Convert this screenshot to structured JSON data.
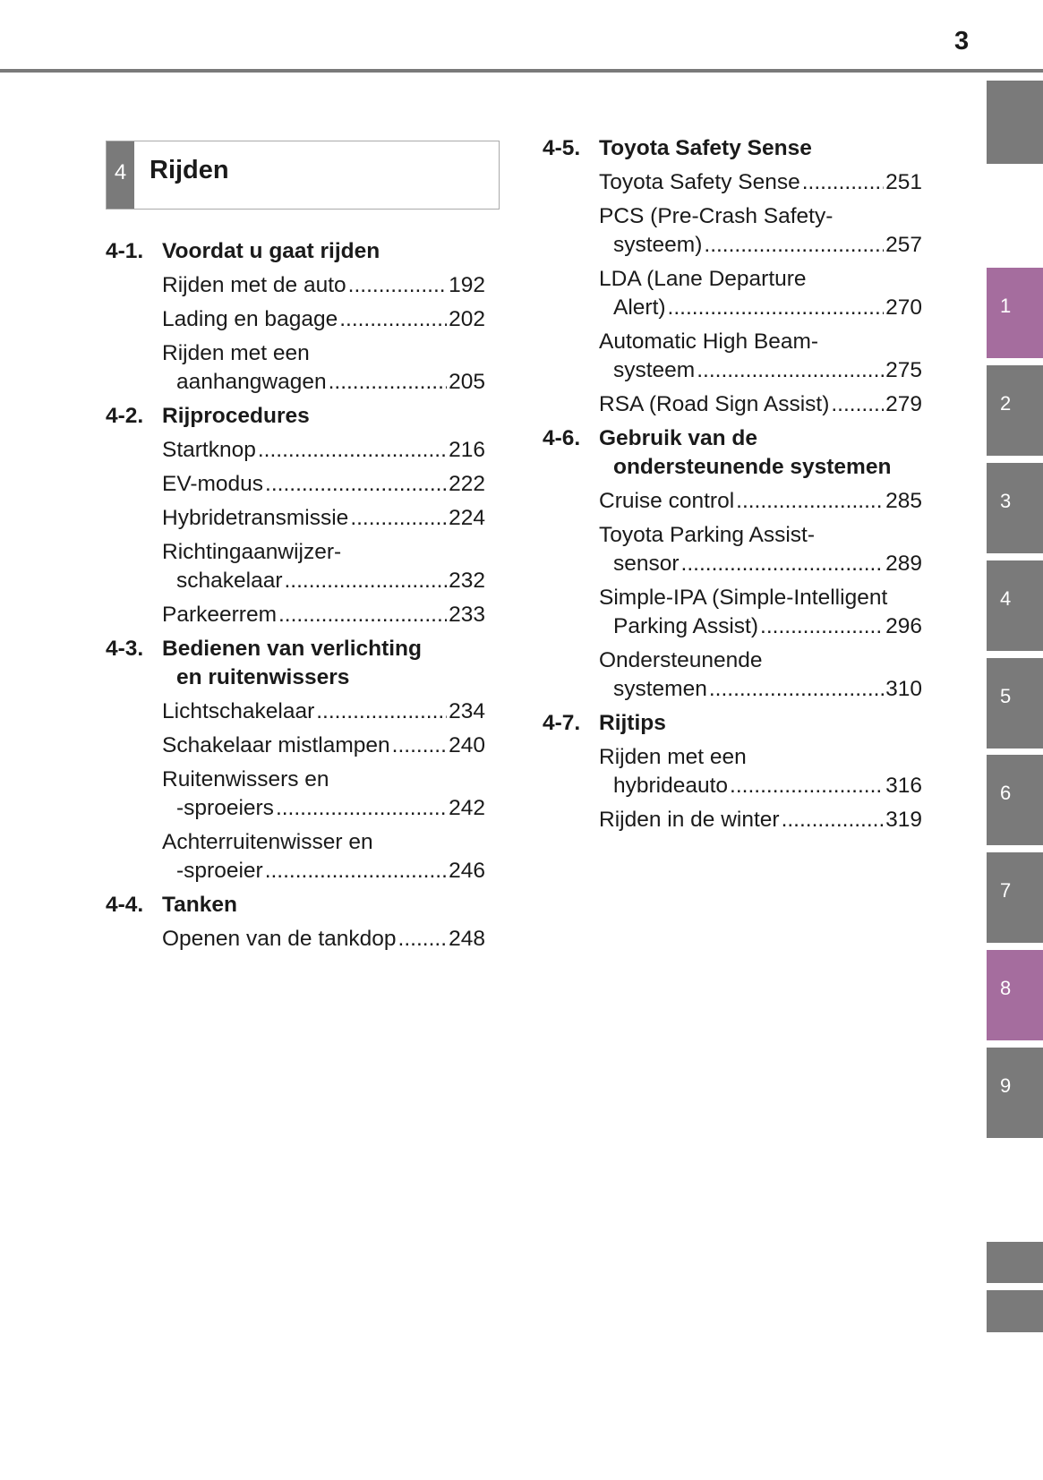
{
  "page_number": "3",
  "chapter": {
    "number": "4",
    "title": "Rijden"
  },
  "side_tabs": [
    {
      "label": "",
      "color": "#7a7a7a"
    },
    {
      "label": "1",
      "color": "#a56d9e"
    },
    {
      "label": "2",
      "color": "#7a7a7a"
    },
    {
      "label": "3",
      "color": "#7a7a7a"
    },
    {
      "label": "4",
      "color": "#7a7a7a"
    },
    {
      "label": "5",
      "color": "#7a7a7a"
    },
    {
      "label": "6",
      "color": "#7a7a7a"
    },
    {
      "label": "7",
      "color": "#7a7a7a"
    },
    {
      "label": "8",
      "color": "#a56d9e"
    },
    {
      "label": "9",
      "color": "#7a7a7a"
    },
    {
      "label": "",
      "color": "#7a7a7a"
    },
    {
      "label": "",
      "color": "#7a7a7a"
    }
  ],
  "columns": [
    [
      {
        "no": "4-1.",
        "title": [
          "Voordat u gaat rijden"
        ],
        "items": [
          {
            "lines": [
              "Rijden met de auto"
            ],
            "page": "192"
          },
          {
            "lines": [
              "Lading en bagage"
            ],
            "page": "202"
          },
          {
            "lines": [
              "Rijden met een",
              "aanhangwagen"
            ],
            "page": "205"
          }
        ]
      },
      {
        "no": "4-2.",
        "title": [
          "Rijprocedures"
        ],
        "items": [
          {
            "lines": [
              "Startknop"
            ],
            "page": "216"
          },
          {
            "lines": [
              "EV-modus"
            ],
            "page": "222"
          },
          {
            "lines": [
              "Hybridetransmissie"
            ],
            "page": "224"
          },
          {
            "lines": [
              "Richtingaanwijzer-",
              "schakelaar"
            ],
            "page": "232"
          },
          {
            "lines": [
              "Parkeerrem"
            ],
            "page": "233"
          }
        ]
      },
      {
        "no": "4-3.",
        "title": [
          "Bedienen van verlichting",
          "en ruitenwissers"
        ],
        "items": [
          {
            "lines": [
              "Lichtschakelaar"
            ],
            "page": "234"
          },
          {
            "lines": [
              "Schakelaar mistlampen"
            ],
            "page": "240"
          },
          {
            "lines": [
              "Ruitenwissers en",
              "-sproeiers"
            ],
            "page": "242"
          },
          {
            "lines": [
              "Achterruitenwisser en",
              "-sproeier"
            ],
            "page": "246"
          }
        ]
      },
      {
        "no": "4-4.",
        "title": [
          "Tanken"
        ],
        "items": [
          {
            "lines": [
              "Openen van de tankdop"
            ],
            "page": "248"
          }
        ]
      }
    ],
    [
      {
        "no": "4-5.",
        "title": [
          "Toyota Safety Sense"
        ],
        "items": [
          {
            "lines": [
              "Toyota Safety Sense"
            ],
            "page": "251"
          },
          {
            "lines": [
              "PCS (Pre-Crash Safety-",
              "systeem)"
            ],
            "page": "257"
          },
          {
            "lines": [
              "LDA (Lane Departure",
              "Alert)"
            ],
            "page": "270"
          },
          {
            "lines": [
              "Automatic High Beam-",
              "systeem"
            ],
            "page": "275"
          },
          {
            "lines": [
              "RSA (Road Sign Assist)"
            ],
            "page": "279"
          }
        ]
      },
      {
        "no": "4-6.",
        "title": [
          "Gebruik van de",
          "ondersteunende systemen"
        ],
        "items": [
          {
            "lines": [
              "Cruise control"
            ],
            "page": "285"
          },
          {
            "lines": [
              "Toyota Parking Assist-",
              "sensor"
            ],
            "page": "289"
          },
          {
            "lines": [
              "Simple-IPA (Simple-Intelligent",
              "Parking Assist)"
            ],
            "page": "296"
          },
          {
            "lines": [
              "Ondersteunende",
              "systemen"
            ],
            "page": "310"
          }
        ]
      },
      {
        "no": "4-7.",
        "title": [
          "Rijtips"
        ],
        "items": [
          {
            "lines": [
              "Rijden met een",
              "hybrideauto"
            ],
            "page": "316"
          },
          {
            "lines": [
              "Rijden in de winter"
            ],
            "page": "319"
          }
        ]
      }
    ]
  ]
}
